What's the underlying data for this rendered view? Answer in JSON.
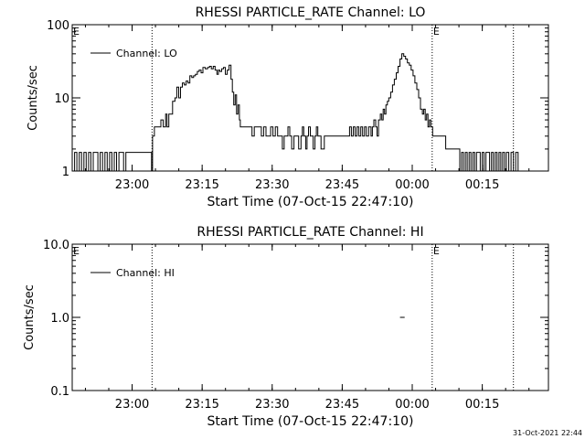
{
  "footer_timestamp": "31-Oct-2021 22:44",
  "chart_data": [
    {
      "type": "line",
      "title": "RHESSI PARTICLE_RATE Channel: LO",
      "xlabel": "Start Time (07-Oct-15 22:47:10)",
      "ylabel": "Counts/sec",
      "x_units": "minutes after 22:47:10",
      "xlim": [
        0,
        102
      ],
      "xticks": [
        12.83,
        27.83,
        42.83,
        57.83,
        72.83,
        87.83
      ],
      "xtick_labels": [
        "23:00",
        "23:15",
        "23:30",
        "23:45",
        "00:00",
        "00:15"
      ],
      "yscale": "log",
      "ylim": [
        1,
        100
      ],
      "yticks": [
        1,
        10,
        100
      ],
      "ytick_labels": [
        "1",
        "10",
        "100"
      ],
      "legend": {
        "label": "Channel: LO",
        "placement": "top-left"
      },
      "markers": [
        {
          "x": 17.1,
          "label": ""
        },
        {
          "x": 77.1,
          "label": "E"
        },
        {
          "x": 94.5,
          "label": ""
        }
      ],
      "axis_marker_label": "E",
      "series": [
        {
          "name": "Channel: LO",
          "points": [
            [
              0,
              1
            ],
            [
              0.5,
              1.8
            ],
            [
              1,
              1
            ],
            [
              1.5,
              1.8
            ],
            [
              2,
              1
            ],
            [
              2.5,
              1.8
            ],
            [
              3,
              1
            ],
            [
              3.5,
              1.8
            ],
            [
              4,
              1
            ],
            [
              4.5,
              1.8
            ],
            [
              5,
              1.8
            ],
            [
              5.5,
              1
            ],
            [
              6,
              1.8
            ],
            [
              6.5,
              1
            ],
            [
              7,
              1.8
            ],
            [
              7.5,
              1
            ],
            [
              8,
              1.8
            ],
            [
              8.5,
              1
            ],
            [
              9,
              1.8
            ],
            [
              9.5,
              1
            ],
            [
              10,
              1.8
            ],
            [
              10.5,
              1.8
            ],
            [
              11,
              1
            ],
            [
              11.5,
              1.8
            ],
            [
              12,
              1.8
            ],
            [
              13,
              1.8
            ],
            [
              14,
              1.8
            ],
            [
              15,
              1.8
            ],
            [
              16,
              1.8
            ],
            [
              16.5,
              1.8
            ],
            [
              17,
              1
            ],
            [
              17.2,
              3
            ],
            [
              17.6,
              4
            ],
            [
              18.5,
              4
            ],
            [
              19,
              5
            ],
            [
              19.5,
              4
            ],
            [
              20,
              6
            ],
            [
              20.3,
              4
            ],
            [
              20.7,
              6
            ],
            [
              21,
              6
            ],
            [
              21.5,
              9
            ],
            [
              22,
              10
            ],
            [
              22.4,
              14
            ],
            [
              22.8,
              10
            ],
            [
              23.2,
              14
            ],
            [
              23.6,
              16
            ],
            [
              24,
              15
            ],
            [
              24.4,
              17
            ],
            [
              24.8,
              16
            ],
            [
              25.2,
              20
            ],
            [
              25.6,
              19
            ],
            [
              26,
              20
            ],
            [
              26.4,
              21
            ],
            [
              26.8,
              23
            ],
            [
              27.2,
              24
            ],
            [
              27.6,
              22
            ],
            [
              28,
              26
            ],
            [
              28.5,
              25
            ],
            [
              29,
              26
            ],
            [
              29.4,
              27
            ],
            [
              29.8,
              25
            ],
            [
              30.2,
              27
            ],
            [
              30.6,
              24
            ],
            [
              31,
              21
            ],
            [
              31.3,
              24
            ],
            [
              31.6,
              23
            ],
            [
              32,
              25
            ],
            [
              32.4,
              26
            ],
            [
              32.8,
              21
            ],
            [
              33.2,
              24
            ],
            [
              33.6,
              28
            ],
            [
              34,
              18
            ],
            [
              34.3,
              12
            ],
            [
              34.6,
              8
            ],
            [
              34.9,
              11
            ],
            [
              35.2,
              6
            ],
            [
              35.5,
              8
            ],
            [
              35.8,
              5
            ],
            [
              36,
              4
            ],
            [
              37,
              4
            ],
            [
              38,
              4
            ],
            [
              38.5,
              3
            ],
            [
              39,
              4
            ],
            [
              40,
              4
            ],
            [
              40.5,
              3
            ],
            [
              41,
              4
            ],
            [
              41.5,
              3
            ],
            [
              42,
              3
            ],
            [
              42.5,
              4
            ],
            [
              43,
              3
            ],
            [
              43.5,
              4
            ],
            [
              44,
              3
            ],
            [
              44.5,
              3
            ],
            [
              45,
              2
            ],
            [
              45.4,
              3
            ],
            [
              45.8,
              3
            ],
            [
              46.2,
              4
            ],
            [
              46.6,
              3
            ],
            [
              47,
              2
            ],
            [
              47.5,
              3
            ],
            [
              48,
              3
            ],
            [
              48.5,
              2
            ],
            [
              49,
              3
            ],
            [
              49.3,
              4
            ],
            [
              49.6,
              3
            ],
            [
              50,
              2
            ],
            [
              50.3,
              3
            ],
            [
              50.6,
              4
            ],
            [
              51,
              3
            ],
            [
              51.3,
              3
            ],
            [
              51.6,
              2
            ],
            [
              52,
              3
            ],
            [
              52.3,
              4
            ],
            [
              52.6,
              3
            ],
            [
              53,
              3
            ],
            [
              53.3,
              2
            ],
            [
              54,
              3
            ],
            [
              55,
              3
            ],
            [
              56,
              3
            ],
            [
              57,
              3
            ],
            [
              58,
              3
            ],
            [
              59,
              3
            ],
            [
              59.4,
              4
            ],
            [
              59.8,
              3
            ],
            [
              60.2,
              4
            ],
            [
              60.6,
              3
            ],
            [
              61,
              4
            ],
            [
              61.4,
              3
            ],
            [
              61.8,
              4
            ],
            [
              62.2,
              3
            ],
            [
              62.6,
              4
            ],
            [
              63,
              3
            ],
            [
              63.5,
              4
            ],
            [
              64,
              3
            ],
            [
              64.3,
              4
            ],
            [
              64.6,
              5
            ],
            [
              65,
              4
            ],
            [
              65.3,
              3
            ],
            [
              65.6,
              5
            ],
            [
              66,
              6
            ],
            [
              66.3,
              5
            ],
            [
              66.6,
              7
            ],
            [
              66.9,
              6
            ],
            [
              67.2,
              8
            ],
            [
              67.5,
              9
            ],
            [
              67.8,
              10
            ],
            [
              68.2,
              12
            ],
            [
              68.6,
              15
            ],
            [
              69,
              18
            ],
            [
              69.4,
              22
            ],
            [
              69.8,
              27
            ],
            [
              70.2,
              34
            ],
            [
              70.6,
              40
            ],
            [
              71,
              37
            ],
            [
              71.4,
              34
            ],
            [
              71.8,
              30
            ],
            [
              72.2,
              28
            ],
            [
              72.6,
              24
            ],
            [
              73,
              20
            ],
            [
              73.4,
              16
            ],
            [
              73.8,
              13
            ],
            [
              74.2,
              10
            ],
            [
              74.6,
              7
            ],
            [
              75,
              6
            ],
            [
              75.3,
              7
            ],
            [
              75.6,
              5
            ],
            [
              75.9,
              6
            ],
            [
              76.2,
              4
            ],
            [
              76.5,
              5
            ],
            [
              76.8,
              4
            ],
            [
              77.2,
              3
            ],
            [
              77.6,
              3
            ],
            [
              78,
              3
            ],
            [
              78.5,
              3
            ],
            [
              79,
              3
            ],
            [
              79.5,
              3
            ],
            [
              80,
              2
            ],
            [
              81,
              2
            ],
            [
              82,
              2
            ],
            [
              82.5,
              2
            ],
            [
              83,
              1
            ],
            [
              83.4,
              1.8
            ],
            [
              83.8,
              1
            ],
            [
              84.2,
              1.8
            ],
            [
              84.6,
              1
            ],
            [
              85,
              1.8
            ],
            [
              85.4,
              1
            ],
            [
              85.8,
              1.8
            ],
            [
              86.2,
              1
            ],
            [
              86.6,
              1.8
            ],
            [
              87,
              1.8
            ],
            [
              87.4,
              1
            ],
            [
              87.8,
              1.8
            ],
            [
              88.2,
              1
            ],
            [
              88.6,
              1.8
            ],
            [
              89,
              1.8
            ],
            [
              89.4,
              1
            ],
            [
              89.8,
              1.8
            ],
            [
              90.2,
              1
            ],
            [
              90.6,
              1.8
            ],
            [
              91,
              1
            ],
            [
              91.4,
              1.8
            ],
            [
              91.8,
              1
            ],
            [
              92.2,
              1.8
            ],
            [
              92.6,
              1
            ],
            [
              93,
              1.8
            ],
            [
              93.5,
              1
            ],
            [
              94,
              1.8
            ],
            [
              94.5,
              1
            ],
            [
              95,
              1.8
            ],
            [
              95.5,
              1
            ]
          ]
        }
      ]
    },
    {
      "type": "line",
      "title": "RHESSI PARTICLE_RATE Channel: HI",
      "xlabel": "Start Time (07-Oct-15 22:47:10)",
      "ylabel": "Counts/sec",
      "x_units": "minutes after 22:47:10",
      "xlim": [
        0,
        102
      ],
      "xticks": [
        12.83,
        27.83,
        42.83,
        57.83,
        72.83,
        87.83
      ],
      "xtick_labels": [
        "23:00",
        "23:15",
        "23:30",
        "23:45",
        "00:00",
        "00:15"
      ],
      "yscale": "log",
      "ylim": [
        0.1,
        10
      ],
      "yticks": [
        0.1,
        1,
        10
      ],
      "ytick_labels": [
        "0.1",
        "1.0",
        "10.0"
      ],
      "legend": {
        "label": "Channel: HI",
        "placement": "top-left"
      },
      "markers": [
        {
          "x": 17.1,
          "label": ""
        },
        {
          "x": 77.1,
          "label": "E"
        },
        {
          "x": 94.5,
          "label": ""
        }
      ],
      "axis_marker_label": "E",
      "series": [
        {
          "name": "Channel: HI",
          "points": [
            [
              70.2,
              1
            ],
            [
              71.2,
              1
            ]
          ]
        }
      ]
    }
  ]
}
